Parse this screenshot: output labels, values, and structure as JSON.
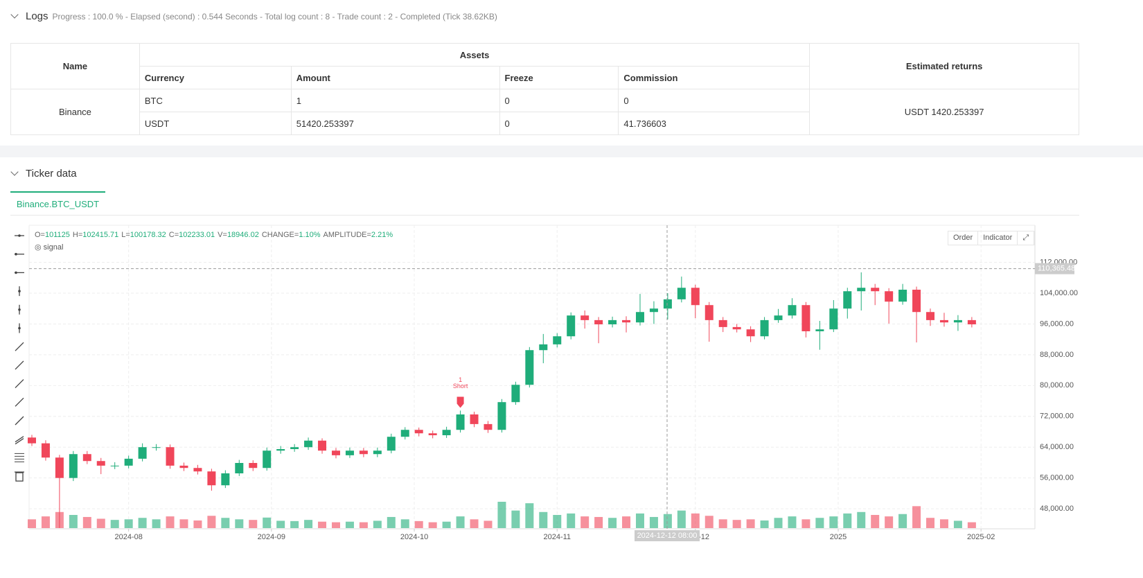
{
  "logs": {
    "title": "Logs",
    "status": "Progress : 100.0 % - Elapsed (second) : 0.544  Seconds - Total log count : 8 - Trade count : 2 - Completed (Tick 38.62KB)"
  },
  "table": {
    "headers": [
      "Name",
      "Assets",
      "Estimated returns"
    ],
    "subheaders": [
      "Currency",
      "Amount",
      "Freeze",
      "Commission"
    ],
    "exchange": "Binance",
    "rows": [
      [
        "BTC",
        "1",
        "0",
        "0"
      ],
      [
        "USDT",
        "51420.253397",
        "0",
        "41.736603"
      ]
    ],
    "estimated_returns": "USDT 1420.253397"
  },
  "ticker": {
    "title": "Ticker data",
    "tab": "Binance.BTC_USDT",
    "buttons": [
      "Order",
      "Indicator"
    ],
    "indicator": "signal",
    "info": [
      {
        "key": "O=",
        "value": "101125"
      },
      {
        "key": "H=",
        "value": "102415.71"
      },
      {
        "key": "L=",
        "value": "100178.32"
      },
      {
        "key": "C=",
        "value": "102233.01"
      },
      {
        "key": "V=",
        "value": "18946.02"
      },
      {
        "key": "CHANGE=",
        "value": "1.10%"
      },
      {
        "key": "AMPLITUDE=",
        "value": "2.21%"
      }
    ]
  },
  "chart_data": {
    "type": "candlestick",
    "up_color": "#1fad7a",
    "down_color": "#f0465a",
    "x": [
      0,
      3,
      6,
      9,
      12,
      15,
      18,
      21,
      24,
      27,
      30,
      33,
      36,
      39,
      42,
      45,
      48,
      51,
      54,
      57,
      60,
      63,
      66,
      69,
      72,
      75,
      78,
      81,
      84,
      87,
      90,
      93,
      96,
      99,
      102,
      105,
      108,
      111,
      114,
      117,
      120,
      123,
      126,
      129,
      132,
      135,
      138,
      141,
      144,
      147,
      150,
      153,
      156,
      159,
      162,
      165,
      168,
      171,
      174,
      177,
      180,
      183,
      186,
      189,
      192,
      195,
      198,
      201,
      204
    ],
    "open": [
      66500,
      65000,
      61300,
      56000,
      62200,
      60400,
      59200,
      59200,
      61000,
      64000,
      64000,
      59200,
      58600,
      57700,
      54100,
      57200,
      59900,
      58600,
      63100,
      63500,
      64000,
      65700,
      63100,
      61900,
      63100,
      62200,
      63100,
      66700,
      68500,
      67600,
      67100,
      68500,
      72500,
      70000,
      68500,
      75700,
      80200,
      89200,
      90700,
      92800,
      98200,
      97000,
      95900,
      97000,
      96400,
      99100,
      100000,
      102400,
      105400,
      100900,
      97000,
      95200,
      94600,
      92800,
      97000,
      98200,
      100900,
      94100,
      94600,
      100000,
      104500,
      105400,
      104500,
      101800,
      104900,
      99100,
      97000,
      96400,
      97000
    ],
    "high": [
      67200,
      65800,
      62000,
      63000,
      63000,
      61200,
      60100,
      61800,
      65000,
      64800,
      64700,
      60000,
      59400,
      58400,
      58000,
      60700,
      60600,
      63900,
      64300,
      64800,
      66500,
      66300,
      63800,
      63900,
      63800,
      63900,
      67500,
      69200,
      69100,
      68300,
      69300,
      73500,
      73200,
      70800,
      76500,
      81000,
      90000,
      93400,
      93600,
      99000,
      99500,
      97800,
      97900,
      98000,
      103800,
      101900,
      104000,
      108300,
      106200,
      101700,
      97800,
      96000,
      95400,
      97800,
      99900,
      102700,
      101700,
      96800,
      102200,
      105400,
      109400,
      106400,
      105300,
      106400,
      105700,
      100000,
      98900,
      98300,
      97800
    ],
    "low": [
      64300,
      60500,
      43000,
      55200,
      59600,
      57000,
      58300,
      58500,
      60300,
      63100,
      58400,
      57800,
      56900,
      52700,
      53400,
      56500,
      57800,
      57900,
      62300,
      62800,
      63300,
      62300,
      61100,
      61200,
      61400,
      61400,
      62400,
      66000,
      66800,
      66300,
      66400,
      67800,
      69200,
      67700,
      67800,
      75000,
      79500,
      85800,
      89900,
      92000,
      94800,
      91000,
      95100,
      93800,
      95600,
      96000,
      97200,
      101600,
      97500,
      91400,
      93900,
      93800,
      91300,
      92000,
      96300,
      97400,
      92500,
      89300,
      93900,
      97400,
      99500,
      100900,
      96100,
      101000,
      91200,
      95500,
      95300,
      94200,
      95100
    ],
    "close": [
      65000,
      61300,
      56000,
      62200,
      60400,
      59200,
      59200,
      61000,
      64000,
      64000,
      59200,
      58600,
      57700,
      54100,
      57200,
      59900,
      58600,
      63100,
      63500,
      64000,
      65700,
      63100,
      61900,
      63100,
      62200,
      63100,
      66700,
      68500,
      67600,
      67100,
      68500,
      72500,
      70000,
      68500,
      75700,
      80200,
      89200,
      90700,
      92800,
      98200,
      97000,
      95900,
      97000,
      96400,
      99100,
      100000,
      102400,
      105400,
      100900,
      97000,
      95200,
      94600,
      92800,
      97000,
      98200,
      100900,
      94100,
      94600,
      100000,
      104500,
      105400,
      104500,
      101800,
      104900,
      99100,
      97000,
      96400,
      97000,
      95900
    ],
    "volume": [
      30000,
      40000,
      55000,
      45000,
      38000,
      32000,
      28000,
      30000,
      35000,
      30000,
      40000,
      30000,
      26000,
      42000,
      35000,
      30000,
      28000,
      36000,
      25000,
      24000,
      28000,
      22000,
      20000,
      22000,
      20000,
      25000,
      38000,
      30000,
      24000,
      20000,
      22000,
      40000,
      30000,
      25000,
      90000,
      60000,
      85000,
      55000,
      45000,
      50000,
      40000,
      38000,
      35000,
      40000,
      50000,
      38000,
      48000,
      60000,
      50000,
      42000,
      30000,
      28000,
      30000,
      26000,
      35000,
      40000,
      30000,
      35000,
      40000,
      50000,
      55000,
      45000,
      40000,
      48000,
      75000,
      35000,
      30000,
      25000,
      20000
    ],
    "xlim": [
      -0.6,
      217.7
    ],
    "xticks": [
      {
        "value": 21,
        "label": "2024-08"
      },
      {
        "value": 52,
        "label": "2024-09"
      },
      {
        "value": 83,
        "label": "2024-10"
      },
      {
        "value": 114,
        "label": "2024-11"
      },
      {
        "value": 144,
        "label": "2024-12"
      },
      {
        "value": 175,
        "label": "2025"
      },
      {
        "value": 206,
        "label": "2025-02"
      }
    ],
    "ylim": [
      42800,
      121640
    ],
    "yticks": [
      {
        "value": 48000,
        "label": "48,000.00"
      },
      {
        "value": 56000,
        "label": "56,000.00"
      },
      {
        "value": 64000,
        "label": "64,000.00"
      },
      {
        "value": 72000,
        "label": "72,000.00"
      },
      {
        "value": 80000,
        "label": "80,000.00"
      },
      {
        "value": 88000,
        "label": "88,000.00"
      },
      {
        "value": 96000,
        "label": "96,000.00"
      },
      {
        "value": 104000,
        "label": "104,000.00"
      },
      {
        "value": 112000,
        "label": "112,000.00"
      }
    ],
    "grid": true,
    "annotations": [
      {
        "x": 93,
        "lines": [
          "1",
          "Short"
        ],
        "color": "#f0465a"
      }
    ],
    "crosshair": {
      "price": {
        "value": 110365.48,
        "label": "110,365.48"
      },
      "time": "2024-12-12 08:00"
    }
  }
}
